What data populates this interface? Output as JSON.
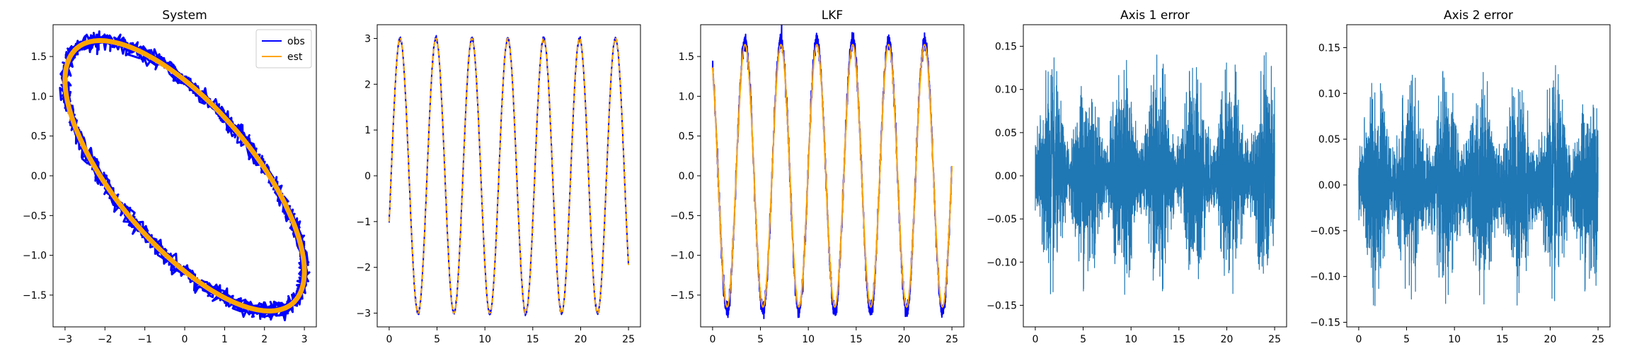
{
  "chart_data": [
    {
      "type": "line",
      "title": "System",
      "xlim": [
        -3.3,
        3.3
      ],
      "ylim": [
        -1.9,
        1.9
      ],
      "xticks": [
        -3,
        -2,
        -1,
        0,
        1,
        2,
        3
      ],
      "yticks": [
        -1.5,
        -1.0,
        -0.5,
        0.0,
        0.5,
        1.0,
        1.5
      ],
      "legend": "upper-right",
      "series": [
        {
          "name": "obs",
          "color": "#0000ff",
          "x_formula": "3*sin(2*pi*t/3.75)",
          "y_formula": "1.7*cos(2*pi*t/3.75 + pi/4)",
          "noise": 0.05
        },
        {
          "name": "est",
          "color": "#ffa500",
          "x_formula": "3*sin(2*pi*t/3.75)",
          "y_formula": "1.7*cos(2*pi*t/3.75 + pi/4)"
        }
      ],
      "t_range": [
        0,
        25
      ]
    },
    {
      "type": "line",
      "title": "",
      "xlim": [
        -1.25,
        26.25
      ],
      "ylim": [
        -3.3,
        3.3
      ],
      "xticks": [
        0,
        5,
        10,
        15,
        20,
        25
      ],
      "yticks": [
        -3,
        -2,
        -1,
        0,
        1,
        2,
        3
      ],
      "series": [
        {
          "color": "#0000ff",
          "amplitude": 3.0,
          "period": 3.75,
          "phase": -0.34,
          "noise": 0.02
        },
        {
          "color": "#ffa500",
          "amplitude": 3.0,
          "period": 3.75,
          "phase": -0.34,
          "dashed": true
        }
      ],
      "t_range": [
        0,
        25
      ]
    },
    {
      "type": "line",
      "title": "LKF",
      "xlim": [
        -1.25,
        26.25
      ],
      "ylim": [
        -1.9,
        1.9
      ],
      "xticks": [
        0,
        5,
        10,
        15,
        20,
        25
      ],
      "yticks": [
        -1.5,
        -1.0,
        -0.5,
        0.0,
        0.5,
        1.0,
        1.5
      ],
      "series": [
        {
          "color": "#0000ff",
          "amplitude": 1.7,
          "period": 3.75,
          "phase": 2.17,
          "noise": 0.05
        },
        {
          "color": "#ffa500",
          "amplitude": 1.65,
          "period": 3.75,
          "phase": 2.17
        }
      ],
      "t_range": [
        0,
        25
      ]
    },
    {
      "type": "line",
      "title": "Axis 1 error",
      "xlim": [
        -1.25,
        26.25
      ],
      "ylim": [
        -0.175,
        0.175
      ],
      "xticks": [
        0,
        5,
        10,
        15,
        20,
        25
      ],
      "yticks": [
        -0.15,
        -0.1,
        -0.05,
        0.0,
        0.05,
        0.1,
        0.15
      ],
      "series": [
        {
          "color": "#1f77b4",
          "noise_envelope_min": 0.04,
          "noise_envelope_max": 0.13,
          "envelope_period": 3.75
        }
      ],
      "t_range": [
        0,
        25
      ]
    },
    {
      "type": "line",
      "title": "Axis 2 error",
      "xlim": [
        -1.25,
        26.25
      ],
      "ylim": [
        -0.155,
        0.175
      ],
      "xticks": [
        0,
        5,
        10,
        15,
        20,
        25
      ],
      "yticks": [
        -0.15,
        -0.1,
        -0.05,
        0.0,
        0.05,
        0.1,
        0.15
      ],
      "series": [
        {
          "color": "#1f77b4",
          "noise_envelope_min": 0.04,
          "noise_envelope_max": 0.12,
          "envelope_period": 3.75
        }
      ],
      "t_range": [
        0,
        25
      ]
    }
  ]
}
